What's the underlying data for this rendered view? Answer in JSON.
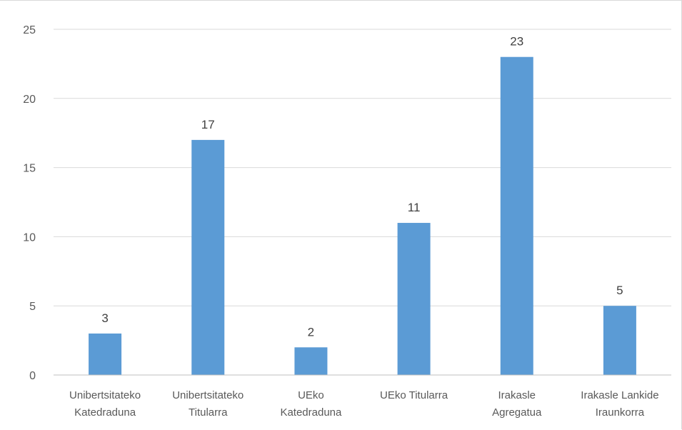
{
  "chart_data": {
    "type": "bar",
    "title": "",
    "xlabel": "",
    "ylabel": "",
    "categories": [
      [
        "Unibertsitateko",
        "Katedraduna"
      ],
      [
        "Unibertsitateko",
        "Titularra"
      ],
      [
        "UEko",
        "Katedraduna"
      ],
      [
        "UEko Titularra"
      ],
      [
        "Irakasle",
        "Agregatua"
      ],
      [
        "Irakasle Lankide",
        "Iraunkorra"
      ]
    ],
    "values": [
      3,
      17,
      2,
      11,
      23,
      5
    ],
    "ylim": [
      0,
      25
    ],
    "yticks": [
      "0",
      "5",
      "10",
      "15",
      "20",
      "25"
    ],
    "data_labels": [
      "3",
      "17",
      "2",
      "11",
      "23",
      "5"
    ],
    "grid": true,
    "legend": "none",
    "colors": {
      "bar": "#5b9bd5",
      "grid": "#d9d9d9",
      "axis": "#bfbfbf",
      "text": "#595959",
      "data_label": "#404040"
    }
  }
}
